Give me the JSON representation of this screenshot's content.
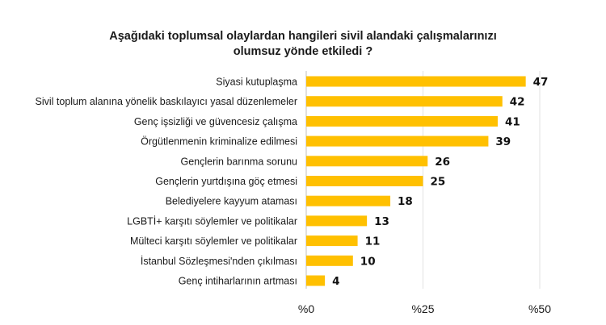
{
  "chart_data": {
    "type": "bar",
    "orientation": "horizontal",
    "title_lines": [
      "Aşağıdaki toplumsal olaylardan hangileri sivil alandaki çalışmalarınızı",
      "olumsuz yönde etkiledi ?"
    ],
    "categories": [
      "Siyasi kutuplaşma",
      "Sivil toplum alanına yönelik baskılayıcı yasal düzenlemeler",
      "Genç işsizliği ve güvencesiz çalışma",
      "Örgütlenmenin kriminalize edilmesi",
      "Gençlerin barınma sorunu",
      "Gençlerin yurtdışına göç etmesi",
      "Belediyelere kayyum ataması",
      "LGBTİ+ karşıtı söylemler ve politikalar",
      "Mülteci karşıtı söylemler ve politikalar",
      "İstanbul Sözleşmesi'nden çıkılması",
      "Genç intiharlarının artması"
    ],
    "values": [
      47,
      42,
      41,
      39,
      26,
      25,
      18,
      13,
      11,
      10,
      4
    ],
    "xlim": [
      0,
      50
    ],
    "ticks": [
      {
        "value": 0,
        "label": "%0"
      },
      {
        "value": 25,
        "label": "%25"
      },
      {
        "value": 50,
        "label": "%50"
      }
    ],
    "bar_color": "#FFC000",
    "gridlines": true,
    "legend": "none"
  }
}
